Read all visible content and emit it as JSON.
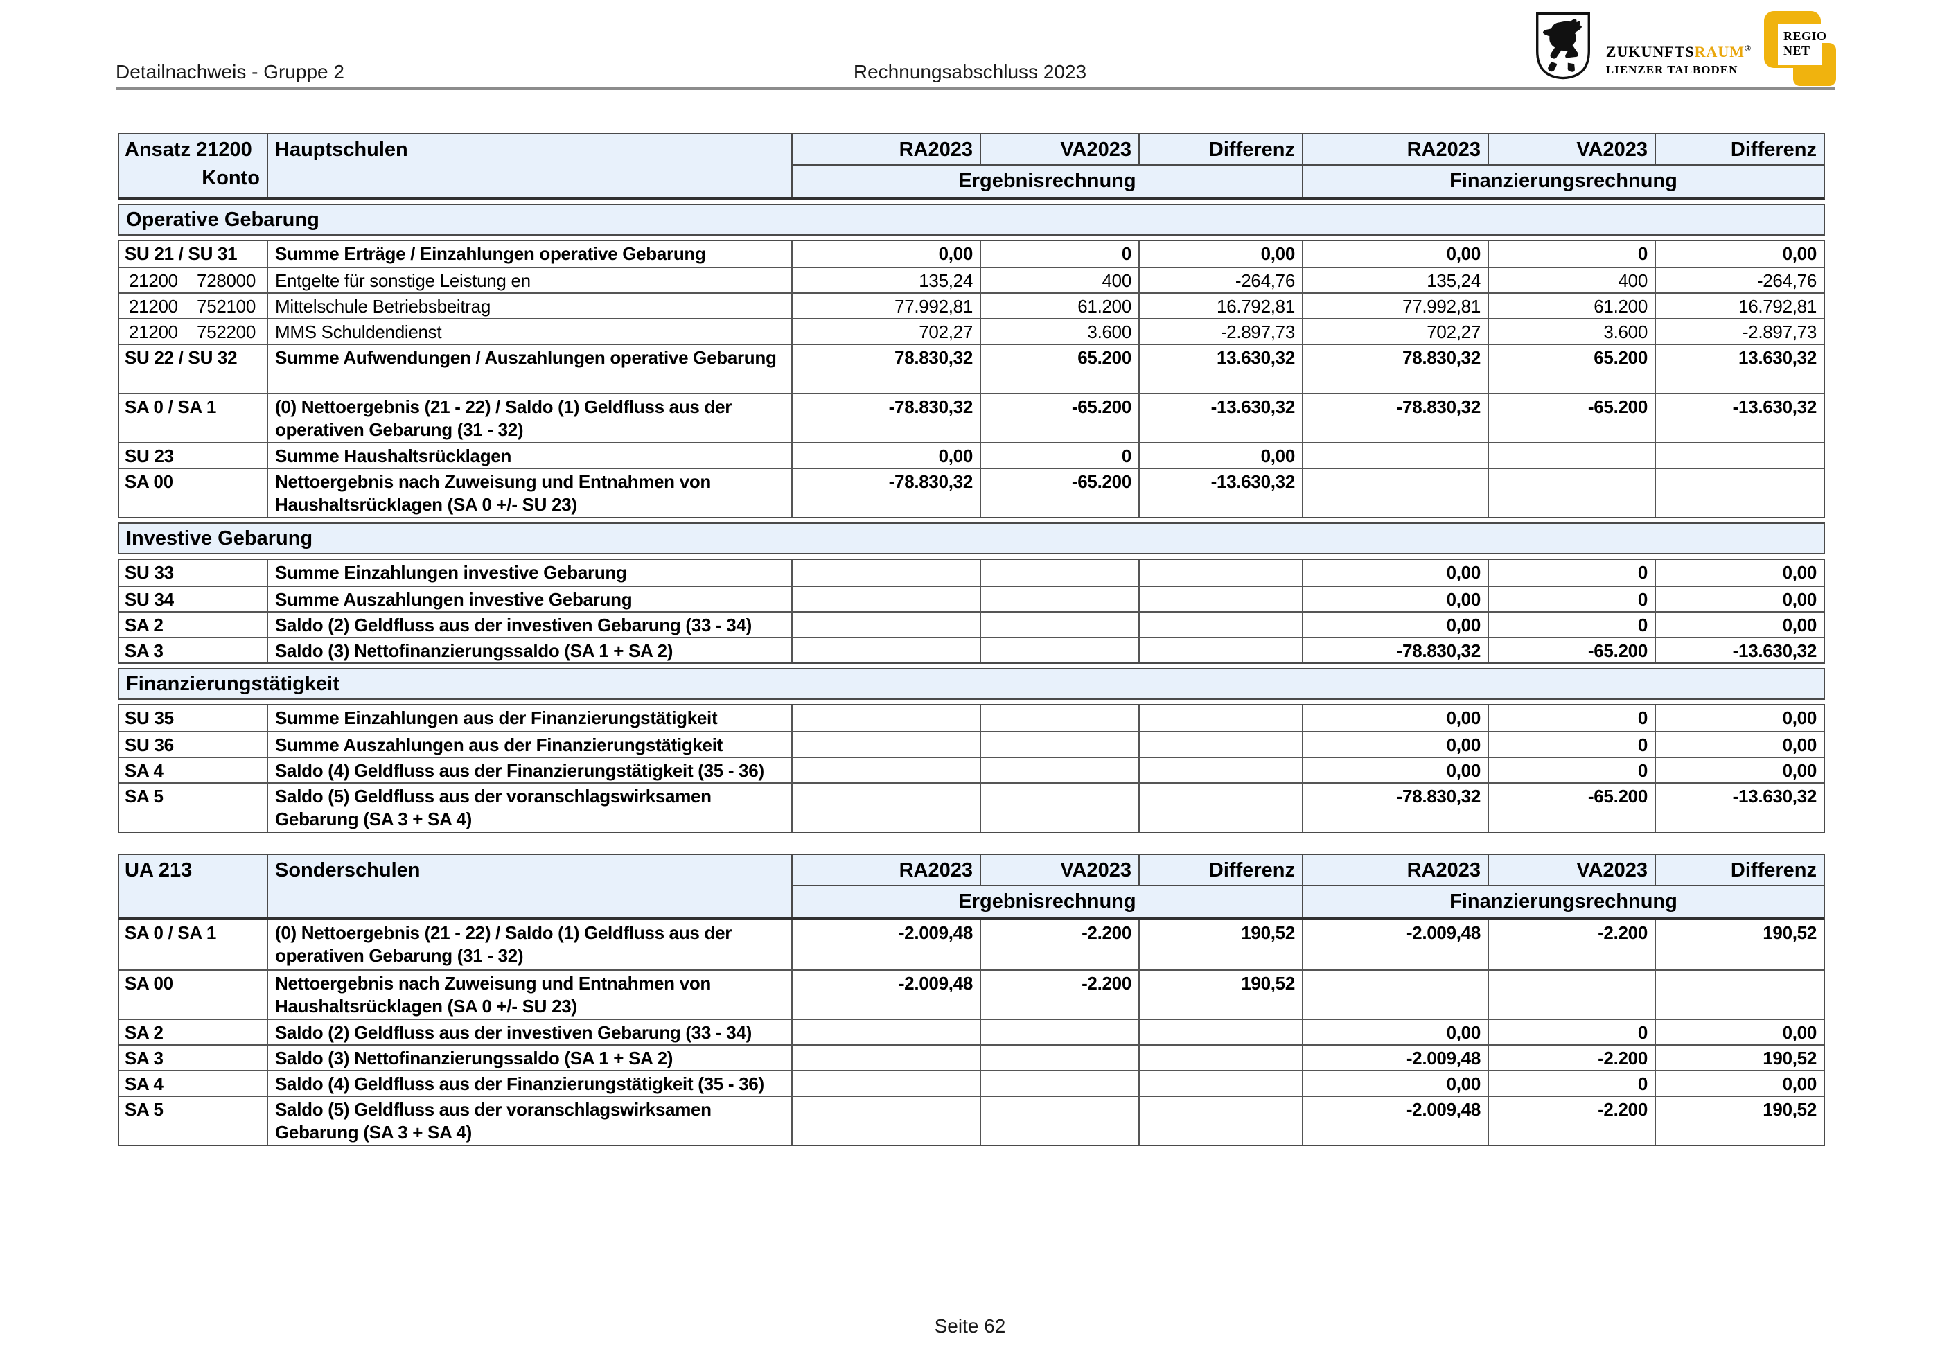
{
  "page": {
    "header_left": "Detailnachweis - Gruppe 2",
    "header_center": "Rechnungsabschluss 2023",
    "footer": "Seite 62"
  },
  "logos": {
    "zukunftsraum_black": "ZUKUNFTS",
    "zukunftsraum_gold": "RAUM",
    "zukunftsraum_reg": "®",
    "zukunftsraum_line2": "LIENZER TALBODEN",
    "regionet_line1": "REGIO",
    "regionet_line2": "NET",
    "gold_color": "#F0B30E"
  },
  "colors": {
    "header_band_bg": "#E8F1FB",
    "table_border": "#4a4a4a"
  },
  "tables": [
    {
      "id_label": "Ansatz 21200",
      "konto_label": "Konto",
      "title": "Hauptschulen",
      "col_headers": [
        "RA2023",
        "VA2023",
        "Differenz",
        "RA2023",
        "VA2023",
        "Differenz"
      ],
      "group_headers": [
        "Ergebnisrechnung",
        "Finanzierungsrechnung"
      ],
      "sections": [
        {
          "title": "Operative Gebarung",
          "rows": [
            {
              "code": "SU 21 / SU 31",
              "desc": "Summe Erträge / Einzahlungen operative Gebarung",
              "bold": true,
              "tall": false,
              "values": [
                "0,00",
                "0",
                "0,00",
                "0,00",
                "0",
                "0,00"
              ]
            },
            {
              "code": "21200",
              "code2": "728000",
              "desc": "Entgelte für sonstige Leistung en",
              "bold": false,
              "tall": false,
              "values": [
                "135,24",
                "400",
                "-264,76",
                "135,24",
                "400",
                "-264,76"
              ]
            },
            {
              "code": "21200",
              "code2": "752100",
              "desc": "Mittelschule Betriebsbeitrag",
              "bold": false,
              "tall": false,
              "values": [
                "77.992,81",
                "61.200",
                "16.792,81",
                "77.992,81",
                "61.200",
                "16.792,81"
              ]
            },
            {
              "code": "21200",
              "code2": "752200",
              "desc": "MMS Schuldendienst",
              "bold": false,
              "tall": false,
              "values": [
                "702,27",
                "3.600",
                "-2.897,73",
                "702,27",
                "3.600",
                "-2.897,73"
              ]
            },
            {
              "code": "SU 22 / SU 32",
              "desc": "Summe Aufwendungen / Auszahlungen operative Gebarung",
              "bold": true,
              "tall": true,
              "values": [
                "78.830,32",
                "65.200",
                "13.630,32",
                "78.830,32",
                "65.200",
                "13.630,32"
              ]
            },
            {
              "code": "SA 0 / SA 1",
              "desc": "(0) Nettoergebnis (21 - 22) / Saldo (1) Geldfluss aus der operativen Gebarung (31 - 32)",
              "bold": true,
              "tall": true,
              "values": [
                "-78.830,32",
                "-65.200",
                "-13.630,32",
                "-78.830,32",
                "-65.200",
                "-13.630,32"
              ]
            },
            {
              "code": "SU 23",
              "desc": "Summe Haushaltsrücklagen",
              "bold": true,
              "tall": false,
              "values": [
                "0,00",
                "0",
                "0,00",
                "",
                "",
                ""
              ]
            },
            {
              "code": "SA 00",
              "desc": "Nettoergebnis nach Zuweisung und Entnahmen von Haushaltsrücklagen (SA 0 +/- SU 23)",
              "bold": true,
              "tall": true,
              "values": [
                "-78.830,32",
                "-65.200",
                "-13.630,32",
                "",
                "",
                ""
              ]
            }
          ]
        },
        {
          "title": "Investive Gebarung",
          "rows": [
            {
              "code": "SU 33",
              "desc": "Summe Einzahlungen investive Gebarung",
              "bold": true,
              "tall": false,
              "values": [
                "",
                "",
                "",
                "0,00",
                "0",
                "0,00"
              ]
            },
            {
              "code": "SU 34",
              "desc": "Summe Auszahlungen investive Gebarung",
              "bold": true,
              "tall": false,
              "values": [
                "",
                "",
                "",
                "0,00",
                "0",
                "0,00"
              ]
            },
            {
              "code": "SA 2",
              "desc": "Saldo (2) Geldfluss aus der investiven Gebarung (33 - 34)",
              "bold": true,
              "tall": false,
              "values": [
                "",
                "",
                "",
                "0,00",
                "0",
                "0,00"
              ]
            },
            {
              "code": "SA 3",
              "desc": "Saldo (3) Nettofinanzierungssaldo (SA 1 + SA 2)",
              "bold": true,
              "tall": false,
              "values": [
                "",
                "",
                "",
                "-78.830,32",
                "-65.200",
                "-13.630,32"
              ]
            }
          ]
        },
        {
          "title": "Finanzierungstätigkeit",
          "rows": [
            {
              "code": "SU 35",
              "desc": "Summe Einzahlungen aus der Finanzierungstätigkeit",
              "bold": true,
              "tall": false,
              "values": [
                "",
                "",
                "",
                "0,00",
                "0",
                "0,00"
              ]
            },
            {
              "code": "SU 36",
              "desc": "Summe Auszahlungen aus der Finanzierungstätigkeit",
              "bold": true,
              "tall": false,
              "values": [
                "",
                "",
                "",
                "0,00",
                "0",
                "0,00"
              ]
            },
            {
              "code": "SA 4",
              "desc": "Saldo (4) Geldfluss aus der Finanzierungstätigkeit (35 - 36)",
              "bold": true,
              "tall": false,
              "values": [
                "",
                "",
                "",
                "0,00",
                "0",
                "0,00"
              ]
            },
            {
              "code": "SA 5",
              "desc": "Saldo (5) Geldfluss aus der voranschlagswirksamen Gebarung (SA 3 + SA 4)",
              "bold": true,
              "tall": true,
              "values": [
                "",
                "",
                "",
                "-78.830,32",
                "-65.200",
                "-13.630,32"
              ]
            }
          ]
        }
      ]
    },
    {
      "id_label": "UA 213",
      "konto_label": "",
      "title": "Sonderschulen",
      "col_headers": [
        "RA2023",
        "VA2023",
        "Differenz",
        "RA2023",
        "VA2023",
        "Differenz"
      ],
      "group_headers": [
        "Ergebnisrechnung",
        "Finanzierungsrechnung"
      ],
      "sections": [
        {
          "title": null,
          "rows": [
            {
              "code": "SA 0 / SA 1",
              "desc": "(0) Nettoergebnis (21 - 22) / Saldo (1) Geldfluss aus der operativen Gebarung (31 - 32)",
              "bold": true,
              "tall": true,
              "values": [
                "-2.009,48",
                "-2.200",
                "190,52",
                "-2.009,48",
                "-2.200",
                "190,52"
              ]
            },
            {
              "code": "SA 00",
              "desc": "Nettoergebnis nach Zuweisung und Entnahmen von Haushaltsrücklagen (SA 0 +/- SU 23)",
              "bold": true,
              "tall": true,
              "values": [
                "-2.009,48",
                "-2.200",
                "190,52",
                "",
                "",
                ""
              ]
            },
            {
              "code": "SA 2",
              "desc": "Saldo (2) Geldfluss aus der investiven Gebarung (33 - 34)",
              "bold": true,
              "tall": false,
              "values": [
                "",
                "",
                "",
                "0,00",
                "0",
                "0,00"
              ]
            },
            {
              "code": "SA 3",
              "desc": "Saldo (3) Nettofinanzierungssaldo (SA 1 + SA 2)",
              "bold": true,
              "tall": false,
              "values": [
                "",
                "",
                "",
                "-2.009,48",
                "-2.200",
                "190,52"
              ]
            },
            {
              "code": "SA 4",
              "desc": "Saldo (4) Geldfluss aus der Finanzierungstätigkeit (35 - 36)",
              "bold": true,
              "tall": false,
              "values": [
                "",
                "",
                "",
                "0,00",
                "0",
                "0,00"
              ]
            },
            {
              "code": "SA 5",
              "desc": "Saldo (5) Geldfluss aus der voranschlagswirksamen Gebarung (SA 3 + SA 4)",
              "bold": true,
              "tall": true,
              "values": [
                "",
                "",
                "",
                "-2.009,48",
                "-2.200",
                "190,52"
              ]
            }
          ]
        }
      ]
    }
  ]
}
